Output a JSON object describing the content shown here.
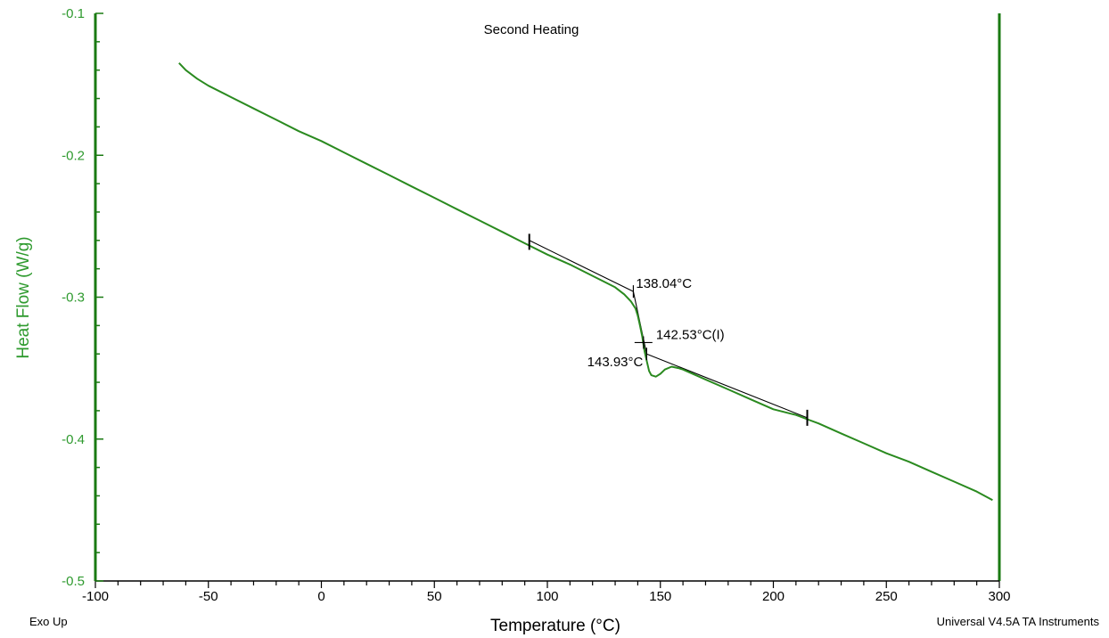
{
  "chart_data": {
    "type": "line",
    "title": "Second Heating",
    "xlabel": "Temperature (°C)",
    "ylabel": "Heat Flow (W/g)",
    "xlim": [
      -100,
      300
    ],
    "ylim": [
      -0.5,
      -0.1
    ],
    "x_ticks": [
      "-100",
      "-50",
      "0",
      "50",
      "100",
      "150",
      "200",
      "250",
      "300"
    ],
    "y_ticks": [
      "-0.1",
      "-0.2",
      "-0.3",
      "-0.4",
      "-0.5"
    ],
    "grid": false,
    "colors": {
      "curve": "#2a8a1f",
      "axis": "#1a7a12",
      "ylabel": "#2e9a2e",
      "y_tick_labels": "#2e9a2e",
      "annotations": "#000000"
    },
    "series": [
      {
        "x": [
          -63,
          -60,
          -55,
          -50,
          -40,
          -30,
          -20,
          -10,
          0,
          10,
          20,
          30,
          40,
          50,
          60,
          70,
          80,
          90,
          100,
          110,
          120,
          125,
          130,
          134,
          137,
          139,
          140,
          141,
          142,
          142.5,
          143,
          144,
          145,
          146,
          148,
          150,
          152,
          155,
          158,
          160,
          170,
          180,
          190,
          200,
          210,
          215,
          220,
          230,
          240,
          250,
          260,
          270,
          280,
          290,
          297
        ],
        "y": [
          -0.135,
          -0.14,
          -0.146,
          -0.151,
          -0.159,
          -0.167,
          -0.175,
          -0.183,
          -0.19,
          -0.198,
          -0.206,
          -0.214,
          -0.222,
          -0.23,
          -0.238,
          -0.246,
          -0.254,
          -0.262,
          -0.27,
          -0.277,
          -0.285,
          -0.289,
          -0.293,
          -0.298,
          -0.303,
          -0.308,
          -0.313,
          -0.32,
          -0.328,
          -0.333,
          -0.338,
          -0.345,
          -0.352,
          -0.355,
          -0.356,
          -0.354,
          -0.351,
          -0.349,
          -0.35,
          -0.351,
          -0.358,
          -0.365,
          -0.372,
          -0.379,
          -0.383,
          -0.386,
          -0.389,
          -0.396,
          -0.403,
          -0.41,
          -0.416,
          -0.423,
          -0.43,
          -0.437,
          -0.443
        ]
      }
    ],
    "annotations": [
      {
        "label": "138.04°C",
        "x": 138.04,
        "y": -0.296
      },
      {
        "label": "142.53°C(I)",
        "x": 142.53,
        "y": -0.332
      },
      {
        "label": "143.93°C",
        "x": 143.93,
        "y": -0.34
      }
    ],
    "construction_lines": [
      {
        "x": [
          92,
          138.04
        ],
        "y": [
          -0.26,
          -0.296
        ]
      },
      {
        "x": [
          138.04,
          143.93
        ],
        "y": [
          -0.296,
          -0.34
        ]
      },
      {
        "x": [
          143.93,
          215
        ],
        "y": [
          -0.34,
          -0.385
        ]
      }
    ],
    "limit_markers": [
      {
        "x": 92,
        "y": -0.261
      },
      {
        "x": 215,
        "y": -0.385
      }
    ],
    "footer_left": "Exo Up",
    "footer_right": "Universal V4.5A TA Instruments"
  }
}
